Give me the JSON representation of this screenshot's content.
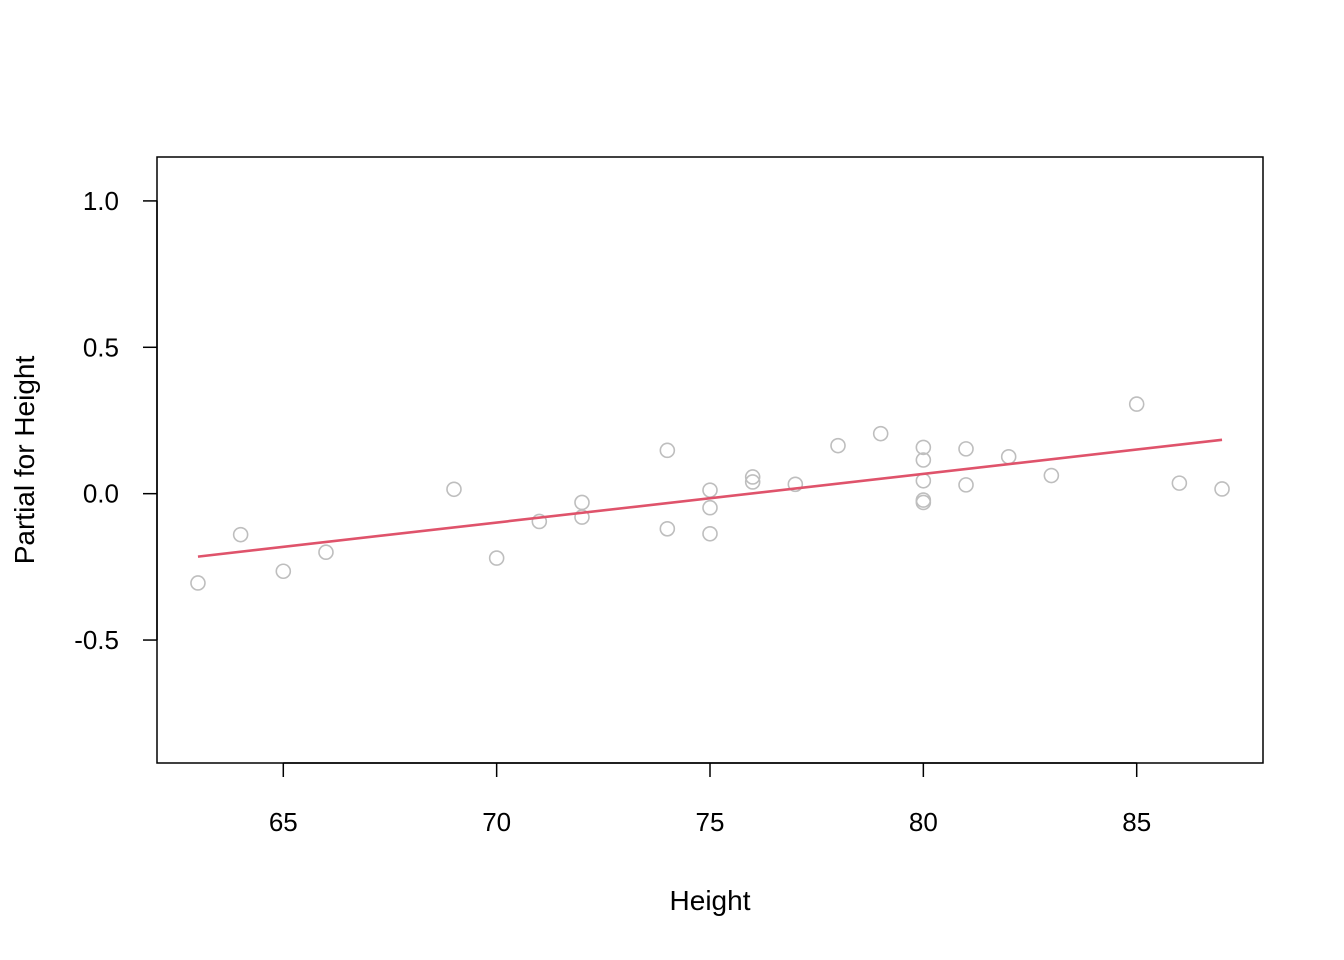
{
  "chart_data": {
    "type": "scatter",
    "title": "",
    "xlabel": "Height",
    "ylabel": "Partial for Height",
    "xlim": [
      62.04,
      87.96
    ],
    "ylim": [
      -0.92,
      1.15
    ],
    "xticks": [
      65,
      70,
      75,
      80,
      85
    ],
    "xtick_labels": [
      "65",
      "70",
      "75",
      "80",
      "85"
    ],
    "yticks": [
      -0.5,
      0.0,
      0.5,
      1.0
    ],
    "ytick_labels": [
      "-0.5",
      "0.0",
      "0.5",
      "1.0"
    ],
    "grid": false,
    "points": [
      {
        "x": 63,
        "y": -0.305
      },
      {
        "x": 64,
        "y": -0.14
      },
      {
        "x": 65,
        "y": -0.265
      },
      {
        "x": 66,
        "y": -0.2
      },
      {
        "x": 69,
        "y": 0.015
      },
      {
        "x": 70,
        "y": -0.22
      },
      {
        "x": 71,
        "y": -0.095
      },
      {
        "x": 72,
        "y": -0.03
      },
      {
        "x": 72,
        "y": -0.08
      },
      {
        "x": 74,
        "y": 0.148
      },
      {
        "x": 74,
        "y": -0.12
      },
      {
        "x": 75,
        "y": 0.012
      },
      {
        "x": 75,
        "y": -0.048
      },
      {
        "x": 75,
        "y": -0.137
      },
      {
        "x": 76,
        "y": 0.057
      },
      {
        "x": 76,
        "y": 0.04
      },
      {
        "x": 77,
        "y": 0.032
      },
      {
        "x": 78,
        "y": 0.164
      },
      {
        "x": 79,
        "y": 0.205
      },
      {
        "x": 80,
        "y": 0.158
      },
      {
        "x": 80,
        "y": 0.115
      },
      {
        "x": 80,
        "y": 0.044
      },
      {
        "x": 80,
        "y": -0.022
      },
      {
        "x": 80,
        "y": -0.03
      },
      {
        "x": 81,
        "y": 0.153
      },
      {
        "x": 81,
        "y": 0.03
      },
      {
        "x": 82,
        "y": 0.126
      },
      {
        "x": 83,
        "y": 0.062
      },
      {
        "x": 85,
        "y": 0.306
      },
      {
        "x": 86,
        "y": 0.036
      },
      {
        "x": 87,
        "y": 0.016
      }
    ],
    "fit_line": {
      "x": [
        63,
        87
      ],
      "y": [
        -0.215,
        0.184
      ]
    },
    "point_color": "#BEBEBE",
    "line_color": "#DF536B"
  }
}
